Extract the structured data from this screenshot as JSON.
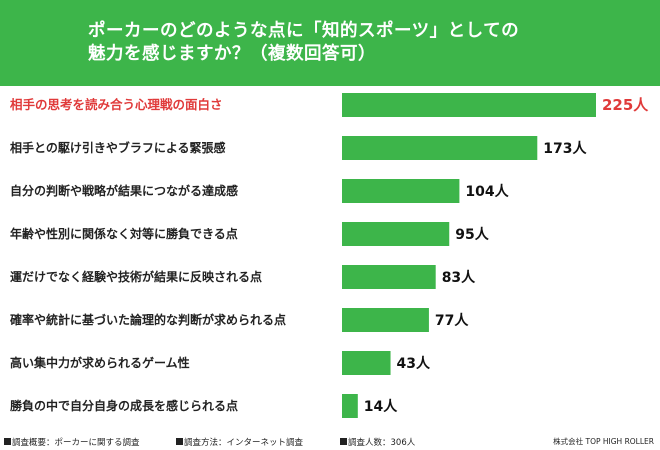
{
  "title": {
    "line1": "ポーカーのどのような点に「知的スポーツ」としての",
    "line2": "魅力を感じますか？（複数回答可）"
  },
  "colors": {
    "header_bg": "#3db54a",
    "bar": "#3db54a",
    "highlight": "#e03a3a"
  },
  "chart_data": {
    "type": "bar",
    "orientation": "horizontal",
    "unit": "人",
    "categories": [
      "相手の思考を読み合う心理戦の面白さ",
      "相手との駆け引きやブラフによる緊張感",
      "自分の判断や戦略が結果につながる達成感",
      "年齢や性別に関係なく対等に勝負できる点",
      "運だけでなく経験や技術が結果に反映される点",
      "確率や統計に基づいた論理的な判断が求められる点",
      "高い集中力が求められるゲーム性",
      "勝負の中で自分自身の成長を感じられる点"
    ],
    "values": [
      225,
      173,
      104,
      95,
      83,
      77,
      43,
      14
    ],
    "value_labels": [
      "225人",
      "173人",
      "104人",
      "95人",
      "83人",
      "77人",
      "43人",
      "14人"
    ],
    "highlight_index": 0,
    "grid": false,
    "legend": "none"
  },
  "footer": {
    "survey_summary": "調査概要：ポーカーに関する調査",
    "survey_method": "調査方法：インターネット調査",
    "respondents": "調査人数：306人",
    "company": "株式会社 TOP HIGH ROLLER"
  }
}
